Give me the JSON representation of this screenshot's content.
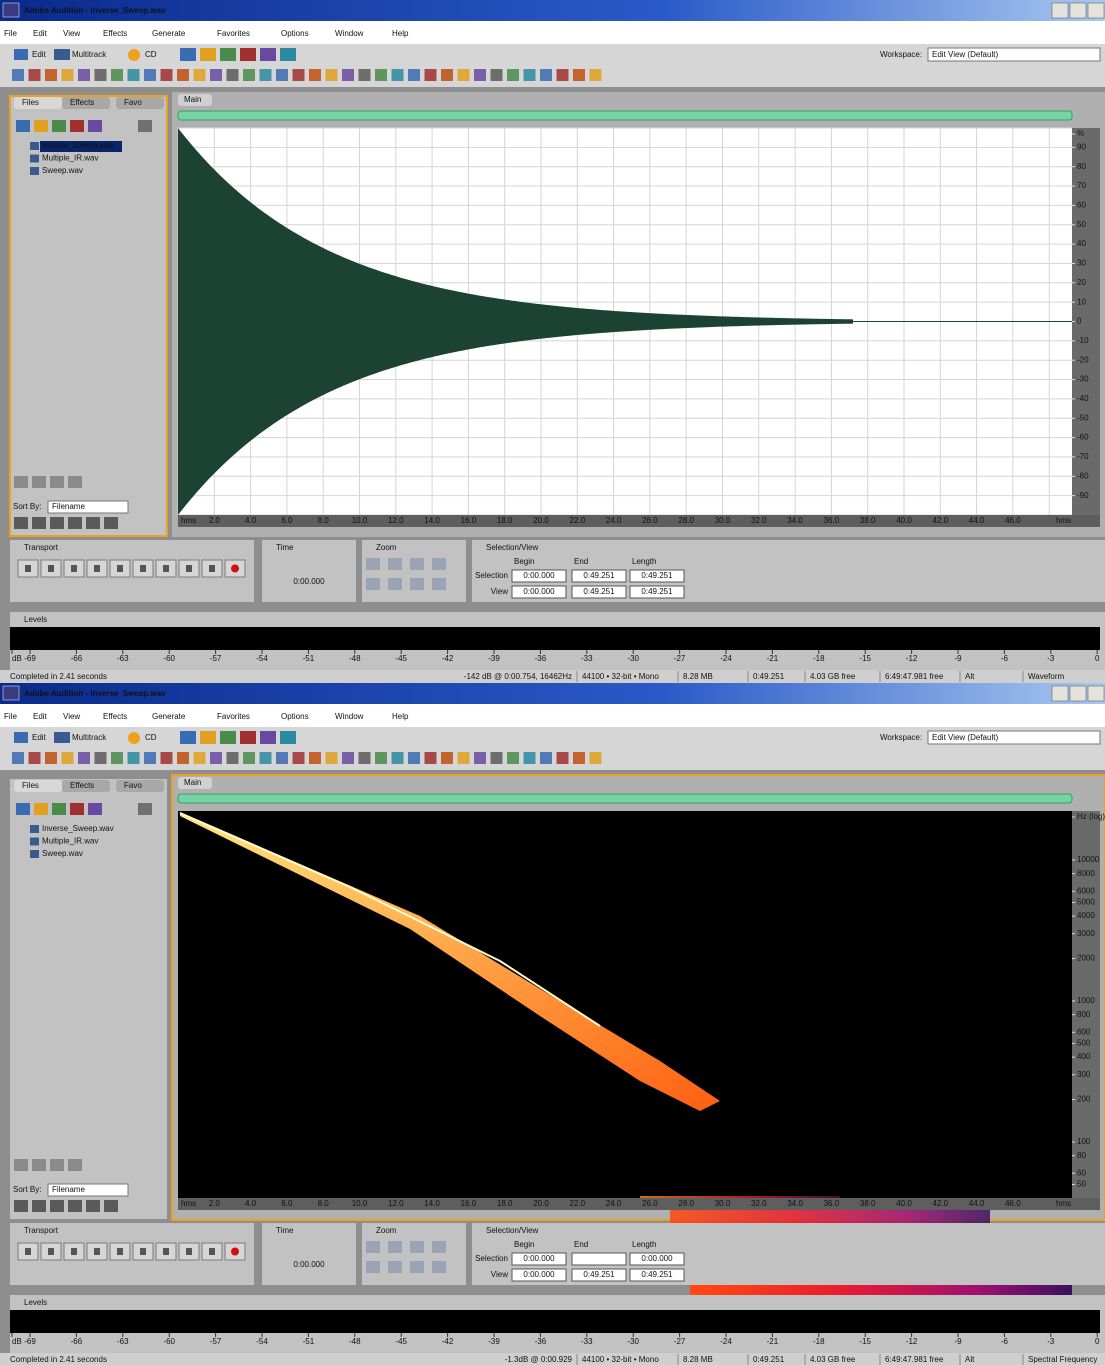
{
  "windows": [
    {
      "title": "Adobe Audition - Inverse_Sweep.wav",
      "menu": [
        "File",
        "Edit",
        "View",
        "Effects",
        "Generate",
        "Favorites",
        "Options",
        "Window",
        "Help"
      ],
      "toolbar": {
        "edit": "Edit",
        "multitrack": "Multitrack",
        "cd": "CD",
        "workspace_label": "Workspace:",
        "workspace": "Edit View (Default)"
      },
      "files_panel": {
        "tabs": [
          "Files",
          "Effects",
          "Favo"
        ],
        "files": [
          "Inverse_Sweep.wav",
          "Multiple_IR.wav",
          "Sweep.wav"
        ],
        "sort_label": "Sort By:",
        "sort_value": "Filename"
      },
      "main_tab": "Main",
      "vertical_axis": [
        "%",
        "90",
        "80",
        "70",
        "60",
        "50",
        "40",
        "30",
        "20",
        "10",
        "0",
        "-10",
        "-20",
        "-30",
        "-40",
        "-50",
        "-60",
        "-70",
        "-80",
        "-90"
      ],
      "time_ruler": [
        "hms",
        "2.0",
        "4.0",
        "6.0",
        "8.0",
        "10.0",
        "12.0",
        "14.0",
        "16.0",
        "18.0",
        "20.0",
        "22.0",
        "24.0",
        "26.0",
        "28.0",
        "30.0",
        "32.0",
        "34.0",
        "36.0",
        "38.0",
        "40.0",
        "42.0",
        "44.0",
        "46.0",
        "hms"
      ],
      "transport_tab": "Transport",
      "time_tab": "Time",
      "time_display": "0:00.000",
      "zoom_tab": "Zoom",
      "selection_view": {
        "tab": "Selection/View",
        "headers": [
          "Begin",
          "End",
          "Length"
        ],
        "rows": [
          {
            "label": "Selection",
            "cells": [
              "0:00.000",
              "0:49.251",
              "0:49.251"
            ]
          },
          {
            "label": "View",
            "cells": [
              "0:00.000",
              "0:49.251",
              "0:49.251"
            ]
          }
        ]
      },
      "levels_tab": "Levels",
      "levels_scale": [
        "dB",
        "-69",
        "-66",
        "-63",
        "-60",
        "-57",
        "-54",
        "-51",
        "-48",
        "-45",
        "-42",
        "-39",
        "-36",
        "-33",
        "-30",
        "-27",
        "-24",
        "-21",
        "-18",
        "-15",
        "-12",
        "-9",
        "-6",
        "-3",
        "0"
      ],
      "status": [
        "Completed in 2.41 seconds",
        "-142 dB @ 0:00.754, 16462Hz",
        "44100 • 32-bit • Mono",
        "8.28 MB",
        "0:49.251",
        "4.03 GB free",
        "6:49:47.981 free",
        "Alt",
        "Waveform"
      ]
    },
    {
      "title": "Adobe Audition - Inverse_Sweep.wav",
      "menu": [
        "File",
        "Edit",
        "View",
        "Effects",
        "Generate",
        "Favorites",
        "Options",
        "Window",
        "Help"
      ],
      "toolbar": {
        "edit": "Edit",
        "multitrack": "Multitrack",
        "cd": "CD",
        "workspace_label": "Workspace:",
        "workspace": "Edit View (Default)"
      },
      "files_panel": {
        "tabs": [
          "Files",
          "Effects",
          "Favo"
        ],
        "files": [
          "Inverse_Sweep.wav",
          "Multiple_IR.wav",
          "Sweep.wav"
        ],
        "sort_label": "Sort By:",
        "sort_value": "Filename"
      },
      "main_tab": "Main",
      "vertical_axis": [
        "Hz (log)",
        "10000",
        "8000",
        "6000",
        "5000",
        "4000",
        "3000",
        "2000",
        "1000",
        "800",
        "600",
        "500",
        "400",
        "300",
        "200",
        "100",
        "80",
        "60",
        "50"
      ],
      "time_ruler": [
        "hms",
        "2.0",
        "4.0",
        "6.0",
        "8.0",
        "10.0",
        "12.0",
        "14.0",
        "16.0",
        "18.0",
        "20.0",
        "22.0",
        "24.0",
        "26.0",
        "28.0",
        "30.0",
        "32.0",
        "34.0",
        "36.0",
        "38.0",
        "40.0",
        "42.0",
        "44.0",
        "46.0",
        "hms"
      ],
      "transport_tab": "Transport",
      "time_tab": "Time",
      "time_display": "0:00.000",
      "zoom_tab": "Zoom",
      "selection_view": {
        "tab": "Selection/View",
        "headers": [
          "Begin",
          "End",
          "Length"
        ],
        "rows": [
          {
            "label": "Selection",
            "cells": [
              "0:00.000",
              null,
              "0:00.000"
            ]
          },
          {
            "label": "View",
            "cells": [
              "0:00.000",
              "0:49.251",
              "0:49.251"
            ]
          }
        ]
      },
      "levels_tab": "Levels",
      "levels_scale": [
        "dB",
        "-69",
        "-66",
        "-63",
        "-60",
        "-57",
        "-54",
        "-51",
        "-48",
        "-45",
        "-42",
        "-39",
        "-36",
        "-33",
        "-30",
        "-27",
        "-24",
        "-21",
        "-18",
        "-15",
        "-12",
        "-9",
        "-6",
        "-3",
        "0"
      ],
      "status": [
        "Completed in 2.41 seconds",
        "-1.3dB @ 0:00.929",
        "44100 • 32-bit • Mono",
        "8.28 MB",
        "0:49.251",
        "4.03 GB free",
        "6:49:47.981 free",
        "Alt",
        "Spectral Frequency"
      ]
    }
  ]
}
